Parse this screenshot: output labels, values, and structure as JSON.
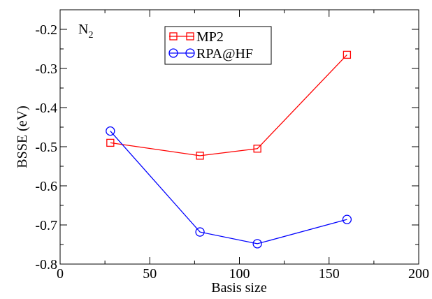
{
  "chart_data": {
    "type": "line",
    "title": "",
    "xlabel": "Basis size",
    "ylabel": "BSSE (eV)",
    "xlim": [
      0,
      200
    ],
    "ylim": [
      -0.8,
      -0.15
    ],
    "x_ticks": [
      "0",
      "50",
      "100",
      "150",
      "200"
    ],
    "y_ticks": [
      "-0.8",
      "-0.7",
      "-0.6",
      "-0.5",
      "-0.4",
      "-0.3",
      "-0.2"
    ],
    "annotation": {
      "base": "N",
      "subscript": "2"
    },
    "grid": false,
    "legend_position": "top-center",
    "series": [
      {
        "name": "MP2",
        "color": "#ff0000",
        "marker": "square",
        "x": [
          28,
          78,
          110,
          160
        ],
        "y": [
          -0.49,
          -0.523,
          -0.505,
          -0.265
        ]
      },
      {
        "name": "RPA@HF",
        "color": "#0000ff",
        "marker": "circle",
        "x": [
          28,
          78,
          110,
          160
        ],
        "y": [
          -0.46,
          -0.718,
          -0.748,
          -0.686
        ]
      }
    ]
  }
}
